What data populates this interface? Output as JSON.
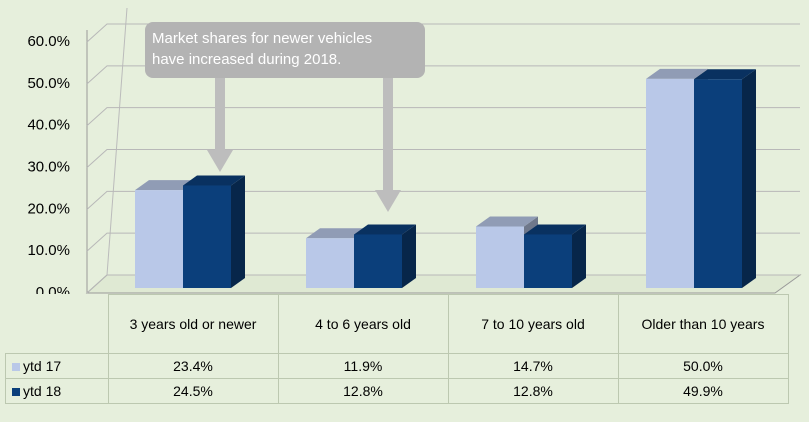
{
  "chart_data": {
    "type": "bar3d",
    "annotation": [
      "Market shares for newer vehicles",
      "have increased during 2018."
    ],
    "categories": [
      "3 years old or newer",
      "4 to 6 years old",
      "7 to 10 years old",
      "Older than 10 years"
    ],
    "series": [
      {
        "name": "ytd 17",
        "color": "#b9c8e8",
        "values": [
          23.4,
          11.9,
          14.7,
          50.0
        ],
        "value_labels": [
          "23.4%",
          "11.9%",
          "14.7%",
          "50.0%"
        ]
      },
      {
        "name": "ytd 18",
        "color": "#0b3f7b",
        "values": [
          24.5,
          12.8,
          12.8,
          49.9
        ],
        "value_labels": [
          "24.5%",
          "12.8%",
          "12.8%",
          "49.9%"
        ]
      }
    ],
    "ylim": [
      0,
      60
    ],
    "yticks": [
      {
        "value": 0,
        "label": "0.0%"
      },
      {
        "value": 10,
        "label": "10.0%"
      },
      {
        "value": 20,
        "label": "20.0%"
      },
      {
        "value": 30,
        "label": "30.0%"
      },
      {
        "value": 40,
        "label": "40.0%"
      },
      {
        "value": 50,
        "label": "50.0%"
      },
      {
        "value": 60,
        "label": "60.0%"
      }
    ],
    "grid": true
  }
}
